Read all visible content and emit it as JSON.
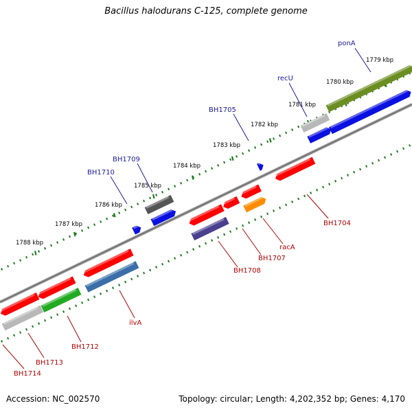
{
  "title": "Bacillus halodurans C-125, complete genome",
  "footer": {
    "accession": "Accession: NC_002570",
    "topology": "Topology: circular; Length: 4,202,352 bp; Genes: 4,170"
  },
  "kbp_ticks": [
    {
      "label": "1779 kbp",
      "kbp": 1779
    },
    {
      "label": "1780 kbp",
      "kbp": 1780
    },
    {
      "label": "1781 kbp",
      "kbp": 1781
    },
    {
      "label": "1782 kbp",
      "kbp": 1782
    },
    {
      "label": "1783 kbp",
      "kbp": 1783
    },
    {
      "label": "1784 kbp",
      "kbp": 1784
    },
    {
      "label": "1785 kbp",
      "kbp": 1785
    },
    {
      "label": "1786 kbp",
      "kbp": 1786
    },
    {
      "label": "1787 kbp",
      "kbp": 1787
    },
    {
      "label": "1788 kbp",
      "kbp": 1788
    }
  ],
  "top_labels": [
    {
      "name": "ponA"
    },
    {
      "name": "recU"
    },
    {
      "name": "BH1705"
    },
    {
      "name": "BH1709"
    },
    {
      "name": "BH1710"
    }
  ],
  "bottom_labels": [
    {
      "name": "BH1704"
    },
    {
      "name": "racA"
    },
    {
      "name": "BH1707"
    },
    {
      "name": "BH1708"
    },
    {
      "name": "ilvA"
    },
    {
      "name": "BH1712"
    },
    {
      "name": "BH1713"
    },
    {
      "name": "BH1714"
    }
  ],
  "colors": {
    "backbone": "#7a7a7a",
    "tick_green": "#1f7a1f",
    "label_top": "#1a1a9a",
    "label_bottom": "#b30000",
    "olive": "#6b8e23",
    "blue": "#0a10e0",
    "grey": "#b8b8b8",
    "dark_grey": "#555555",
    "red": "#ff0000",
    "orange": "#ff8c00",
    "purple": "#4b3f8f",
    "steel_blue": "#3a6ea8",
    "green": "#22aa22"
  }
}
